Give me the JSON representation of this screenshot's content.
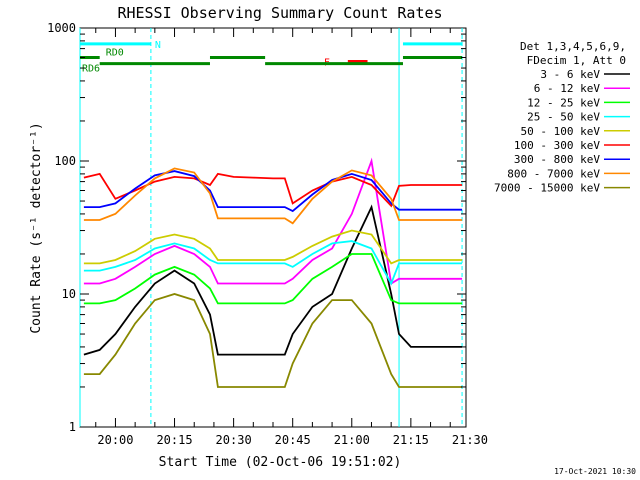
{
  "chart_data": {
    "type": "line",
    "title": "RHESSI Observing Summary Count Rates",
    "xlabel": "Start Time (02-Oct-06 19:51:02)",
    "ylabel": "Count Rate (s⁻¹ detector⁻¹)",
    "yscale": "log",
    "xlim": [
      "19:51",
      "21:29"
    ],
    "ylim": [
      1,
      1000
    ],
    "x_ticks": [
      "20:00",
      "20:15",
      "20:30",
      "20:45",
      "21:00",
      "21:15",
      "21:30"
    ],
    "y_ticks": [
      "1",
      "10",
      "100",
      "1000"
    ],
    "grid": false,
    "legend_position": "right",
    "legend_header": [
      "Det 1,3,4,5,6,9,",
      "FDecim 1, Att 0"
    ],
    "x": [
      "19:52",
      "19:56",
      "20:00",
      "20:05",
      "20:10",
      "20:15",
      "20:20",
      "20:24",
      "20:26",
      "20:30",
      "20:35",
      "20:40",
      "20:43",
      "20:45",
      "20:50",
      "20:55",
      "21:00",
      "21:05",
      "21:10",
      "21:12",
      "21:15",
      "21:20",
      "21:25",
      "21:28"
    ],
    "series": [
      {
        "name": "3 - 6 keV",
        "color": "#000000",
        "values": [
          3.5,
          3.8,
          5,
          8,
          12,
          15,
          12,
          7,
          3.5,
          3.5,
          3.5,
          3.5,
          3.5,
          5,
          8,
          10,
          22,
          45,
          10,
          5,
          4,
          4,
          4,
          4
        ]
      },
      {
        "name": "6 - 12 keV",
        "color": "#ff00ff",
        "values": [
          12,
          12,
          13,
          16,
          20,
          23,
          20,
          16,
          12,
          12,
          12,
          12,
          12,
          13,
          18,
          22,
          40,
          100,
          12,
          13,
          13,
          13,
          13,
          13
        ]
      },
      {
        "name": "12 - 25 keV",
        "color": "#00ff00",
        "values": [
          8.5,
          8.5,
          9,
          11,
          14,
          16,
          14,
          11,
          8.5,
          8.5,
          8.5,
          8.5,
          8.5,
          9,
          13,
          16,
          20,
          20,
          9,
          8.5,
          8.5,
          8.5,
          8.5,
          8.5
        ]
      },
      {
        "name": "25 - 50 keV",
        "color": "#00ffff",
        "values": [
          15,
          15,
          16,
          18,
          22,
          24,
          22,
          18,
          17,
          17,
          17,
          17,
          17,
          16,
          20,
          24,
          25,
          22,
          12,
          17,
          17,
          17,
          17,
          17
        ]
      },
      {
        "name": "50 - 100 keV",
        "color": "#cccc00",
        "values": [
          17,
          17,
          18,
          21,
          26,
          28,
          26,
          22,
          18,
          18,
          18,
          18,
          18,
          19,
          23,
          27,
          30,
          28,
          17,
          18,
          18,
          18,
          18,
          18
        ]
      },
      {
        "name": "100 - 300 keV",
        "color": "#ff0000",
        "values": [
          75,
          80,
          52,
          60,
          70,
          76,
          74,
          66,
          80,
          76,
          75,
          74,
          74,
          48,
          60,
          70,
          76,
          66,
          46,
          65,
          66,
          66,
          66,
          66
        ]
      },
      {
        "name": "300 - 800 keV",
        "color": "#0000ff",
        "values": [
          45,
          45,
          48,
          62,
          78,
          84,
          77,
          60,
          45,
          45,
          45,
          45,
          45,
          42,
          56,
          72,
          80,
          72,
          48,
          43,
          43,
          43,
          43,
          43
        ]
      },
      {
        "name": "800 - 7000 keV",
        "color": "#ff8800",
        "values": [
          36,
          36,
          40,
          55,
          74,
          88,
          82,
          57,
          37,
          37,
          37,
          37,
          37,
          34,
          52,
          70,
          85,
          78,
          52,
          36,
          36,
          36,
          36,
          36
        ]
      },
      {
        "name": "7000 - 15000 keV",
        "color": "#888800",
        "values": [
          2.5,
          2.5,
          3.5,
          6,
          9,
          10,
          9,
          5,
          2,
          2,
          2,
          2,
          2,
          3,
          6,
          9,
          9,
          6,
          2.5,
          2,
          2,
          2,
          2,
          2
        ]
      }
    ],
    "annotations": [
      {
        "label": "N",
        "color": "#00ffff",
        "bars": [
          [
            "19:51",
            "20:09"
          ],
          [
            "21:13",
            "21:28"
          ]
        ],
        "level": 760
      },
      {
        "label": "F",
        "color": "#ff0000",
        "bars": [
          [
            "20:59",
            "21:04"
          ]
        ],
        "level": 560
      },
      {
        "label": "RD0",
        "color": "#008800",
        "bars": [
          [
            "19:51",
            "19:56"
          ],
          [
            "20:24",
            "20:38"
          ],
          [
            "21:13",
            "21:28"
          ]
        ],
        "level": 600
      },
      {
        "label": "RD6",
        "color": "#008800",
        "bars": [
          [
            "19:56",
            "20:24"
          ],
          [
            "20:38",
            "21:13"
          ]
        ],
        "level": 540
      }
    ],
    "vlines": [
      {
        "time": "19:51",
        "style": "solid",
        "color": "#00ffff"
      },
      {
        "time": "20:09",
        "style": "dashed",
        "color": "#00ffff"
      },
      {
        "time": "21:12",
        "style": "solid",
        "color": "#00ffff"
      },
      {
        "time": "21:28",
        "style": "dashed",
        "color": "#00ffff"
      }
    ]
  },
  "footer_date": "17-Oct-2021 10:30"
}
